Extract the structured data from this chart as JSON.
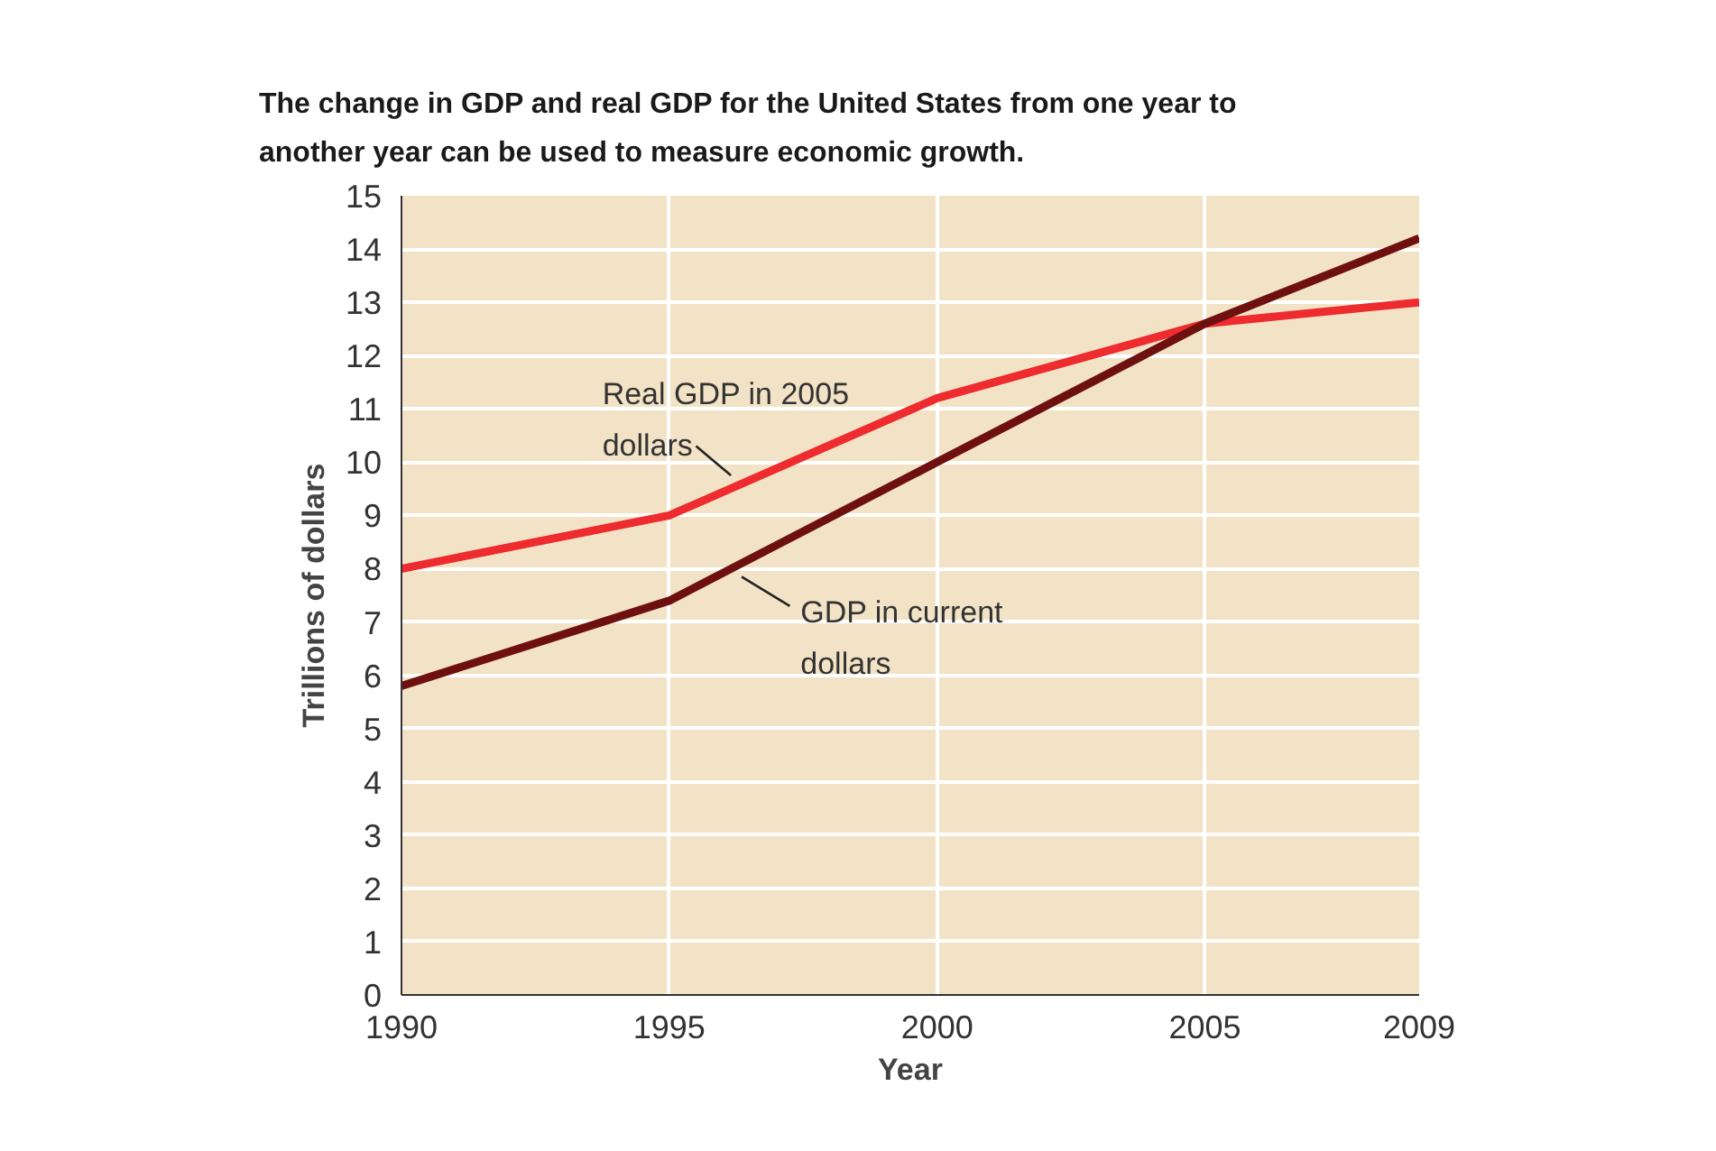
{
  "chart_data": {
    "type": "line",
    "title": "The change in GDP and real GDP for the United States from one year to another year can be used to measure economic growth.",
    "xlabel": "Year",
    "ylabel": "Trillions of dollars",
    "x": [
      1990,
      1995,
      2000,
      2005,
      2009
    ],
    "series": [
      {
        "name": "Real GDP in 2005 dollars",
        "color": "#ee2b2f",
        "values": [
          8.0,
          9.0,
          11.2,
          12.6,
          13.0
        ]
      },
      {
        "name": "GDP in current dollars",
        "color": "#6e1010",
        "values": [
          5.8,
          7.4,
          10.0,
          12.6,
          14.2
        ]
      }
    ],
    "xlim": [
      1990,
      2009
    ],
    "ylim": [
      0,
      15
    ],
    "xticks": [
      1990,
      1995,
      2000,
      2005,
      2009
    ],
    "yticks": [
      0,
      1,
      2,
      3,
      4,
      5,
      6,
      7,
      8,
      9,
      10,
      11,
      12,
      13,
      14,
      15
    ],
    "grid": true,
    "marker": "none",
    "line_style": "solid"
  }
}
